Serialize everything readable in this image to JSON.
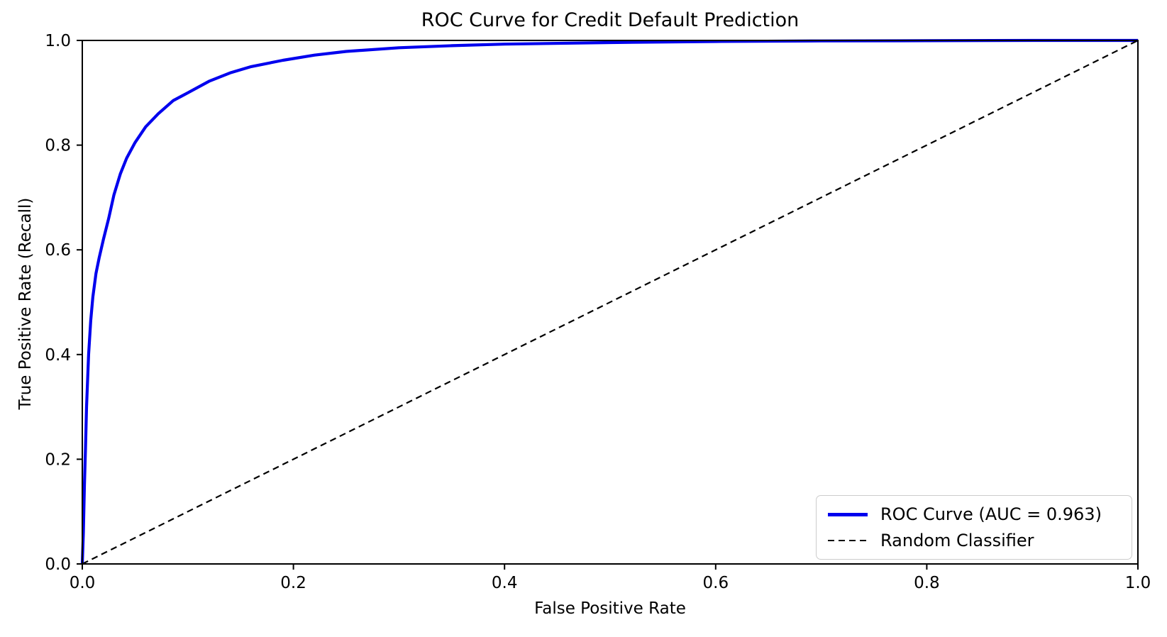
{
  "chart_data": {
    "type": "line",
    "title": "ROC Curve for Credit Default Prediction",
    "xlabel": "False Positive Rate",
    "ylabel": "True Positive Rate (Recall)",
    "xlim": [
      0.0,
      1.0
    ],
    "ylim": [
      0.0,
      1.0
    ],
    "x_ticks": [
      "0.0",
      "0.2",
      "0.4",
      "0.6",
      "0.8",
      "1.0"
    ],
    "y_ticks": [
      "0.0",
      "0.2",
      "0.4",
      "0.6",
      "0.8",
      "1.0"
    ],
    "grid": false,
    "legend_position": "lower right",
    "auc": 0.963,
    "roc_color": "#0000ee",
    "random_color": "#000000",
    "series": [
      {
        "name": "ROC Curve (AUC = 0.963)",
        "style": "solid",
        "points": [
          [
            0.0,
            0.0
          ],
          [
            0.001,
            0.06
          ],
          [
            0.002,
            0.15
          ],
          [
            0.003,
            0.22
          ],
          [
            0.004,
            0.3
          ],
          [
            0.006,
            0.4
          ],
          [
            0.008,
            0.465
          ],
          [
            0.01,
            0.51
          ],
          [
            0.013,
            0.555
          ],
          [
            0.016,
            0.585
          ],
          [
            0.02,
            0.62
          ],
          [
            0.025,
            0.66
          ],
          [
            0.03,
            0.705
          ],
          [
            0.036,
            0.745
          ],
          [
            0.042,
            0.775
          ],
          [
            0.05,
            0.805
          ],
          [
            0.06,
            0.835
          ],
          [
            0.072,
            0.86
          ],
          [
            0.086,
            0.885
          ],
          [
            0.1,
            0.9
          ],
          [
            0.12,
            0.922
          ],
          [
            0.14,
            0.938
          ],
          [
            0.16,
            0.95
          ],
          [
            0.19,
            0.962
          ],
          [
            0.22,
            0.972
          ],
          [
            0.25,
            0.979
          ],
          [
            0.3,
            0.986
          ],
          [
            0.35,
            0.99
          ],
          [
            0.4,
            0.993
          ],
          [
            0.5,
            0.996
          ],
          [
            0.6,
            0.998
          ],
          [
            0.7,
            0.999
          ],
          [
            0.8,
            0.9995
          ],
          [
            0.9,
            1.0
          ],
          [
            1.0,
            1.0
          ]
        ]
      },
      {
        "name": "Random Classifier",
        "style": "dashed",
        "points": [
          [
            0.0,
            0.0
          ],
          [
            1.0,
            1.0
          ]
        ]
      }
    ]
  },
  "legend": {
    "roc_label": "ROC Curve (AUC = 0.963)",
    "random_label": "Random Classifier"
  }
}
